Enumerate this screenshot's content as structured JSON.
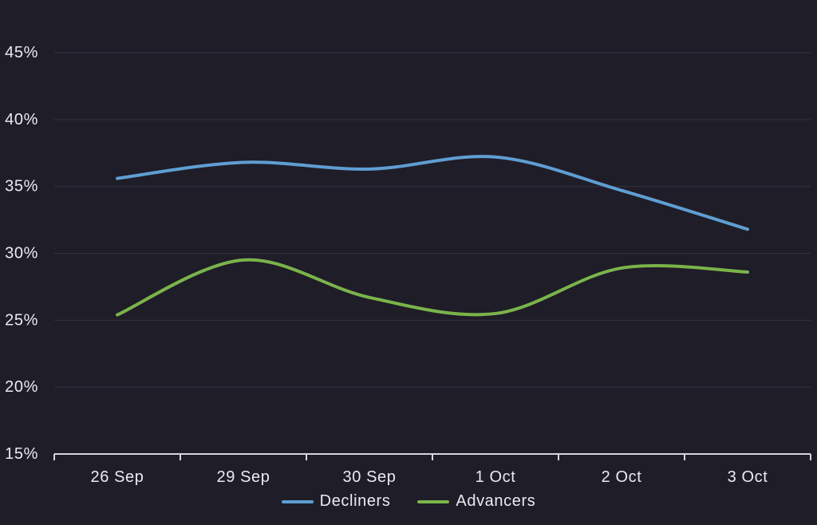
{
  "page": {
    "background_color": "#1f1d28",
    "grid_color": "#363340",
    "axis_color": "#d7d5dc",
    "label_color": "#eceaf0"
  },
  "chart_data": {
    "type": "line",
    "title": "",
    "xlabel": "",
    "ylabel": "",
    "categories": [
      "26 Sep",
      "29 Sep",
      "30 Sep",
      "1 Oct",
      "2 Oct",
      "3 Oct"
    ],
    "series": [
      {
        "name": "Decliners",
        "color": "#5f9ed2",
        "values": [
          35.6,
          36.8,
          36.3,
          37.2,
          34.7,
          31.8
        ]
      },
      {
        "name": "Advancers",
        "color": "#7ab44a",
        "values": [
          25.4,
          29.5,
          26.7,
          25.5,
          28.9,
          28.6
        ]
      }
    ],
    "ylim": [
      15,
      45
    ],
    "yticks": [
      15,
      20,
      25,
      30,
      35,
      40,
      45
    ],
    "ytick_labels": [
      "15%",
      "20%",
      "25%",
      "30%",
      "35%",
      "40%",
      "45%"
    ],
    "grid": "horizontal",
    "line_style": "smooth",
    "legend_position": "bottom"
  }
}
